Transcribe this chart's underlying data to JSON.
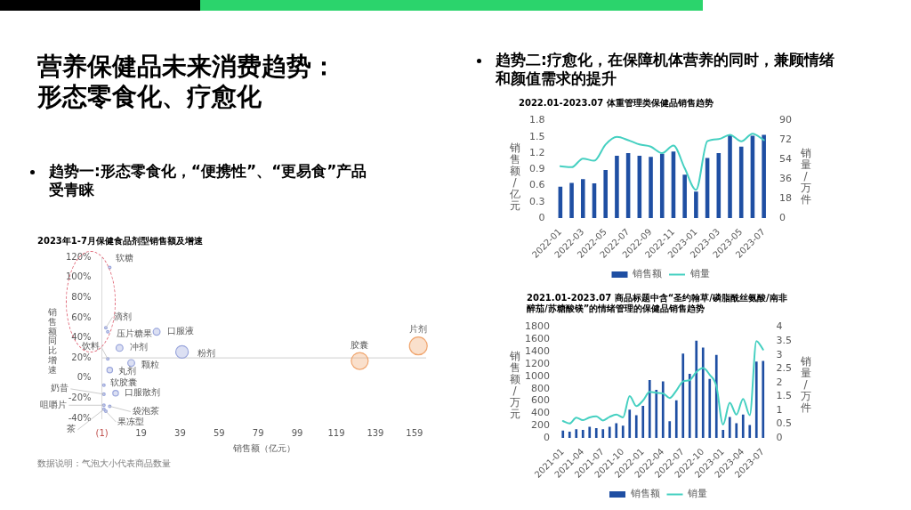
{
  "chart_data": [
    {
      "type": "other",
      "title": "营养保健品未来消费趋势：形态零食化、疗愈化",
      "annotations": [
        "趋势一:形态零食化，“便携性”、“更易食”产品受青睐"
      ]
    },
    {
      "type": "bubble",
      "title": "2023年1-7月保健食品剂型销售额及增速",
      "xlabel": "销售额（亿元）",
      "ylabel": "销售额同比增速",
      "x": [
        3,
        1,
        2,
        27,
        2,
        8,
        40,
        14,
        3,
        0,
        0,
        6,
        0,
        3,
        0,
        1,
        131,
        161
      ],
      "values": [
        110,
        50,
        46,
        46,
        19,
        30,
        26,
        15,
        8,
        -7,
        -16,
        -15,
        -27,
        -28,
        -31,
        -33,
        17,
        32
      ],
      "sizes": [
        0.02,
        0.02,
        0.02,
        0.15,
        0.02,
        0.15,
        0.5,
        0.15,
        0.1,
        0.02,
        0.02,
        0.1,
        0.02,
        0.02,
        0.02,
        0.02,
        0.9,
        1
      ],
      "colors": [
        "#9aa6dc",
        "#9aa6dc",
        "#9aa6dc",
        "#9aa6dc",
        "#9aa6dc",
        "#9aa6dc",
        "#9aa6dc",
        "#9aa6dc",
        "#9aa6dc",
        "#9aa6dc",
        "#9aa6dc",
        "#9aa6dc",
        "#9aa6dc",
        "#9aa6dc",
        "#9aa6dc",
        "#9aa6dc",
        "#f0a56e",
        "#f0a56e"
      ],
      "xlim": [
        -1,
        165
      ],
      "xticks": [
        {
          "value": -1,
          "label": "(1)"
        },
        19,
        39,
        59,
        79,
        99,
        119,
        139,
        159
      ],
      "ylim": [
        -40,
        120
      ],
      "yticks": [
        {
          "value": -40,
          "label": "-40%"
        },
        {
          "value": -20,
          "label": "-20%"
        },
        {
          "value": 0,
          "label": "0%"
        },
        {
          "value": 20,
          "label": "20%"
        },
        {
          "value": 40,
          "label": "40%"
        },
        {
          "value": 60,
          "label": "60%"
        },
        {
          "value": 80,
          "label": "80%"
        },
        {
          "value": 100,
          "label": "100%"
        },
        {
          "value": 120,
          "label": "120%"
        }
      ],
      "ref_lines": [
        {
          "axis": "y",
          "value": 20,
          "color": "#d9d9d9"
        }
      ],
      "annotations": [
        {
          "text": "软糖",
          "x": 3,
          "y": 110
        },
        {
          "text": "滴剂",
          "x": 1,
          "y": 50
        },
        {
          "text": "压片糖果",
          "x": 2,
          "y": 46
        },
        {
          "text": "口服液",
          "x": 27,
          "y": 46
        },
        {
          "text": "饮料",
          "x": 2,
          "y": 19
        },
        {
          "text": "冲剂",
          "x": 8,
          "y": 30
        },
        {
          "text": "粉剂",
          "x": 40,
          "y": 26
        },
        {
          "text": "颗粒",
          "x": 14,
          "y": 15
        },
        {
          "text": "丸剂",
          "x": 3,
          "y": 8
        },
        {
          "text": "软胶囊",
          "x": 0,
          "y": -7
        },
        {
          "text": "奶昔",
          "x": 0,
          "y": -16
        },
        {
          "text": "口服散剂",
          "x": 6,
          "y": -15
        },
        {
          "text": "咀嚼片",
          "x": 0,
          "y": -27
        },
        {
          "text": "袋泡茶",
          "x": 3,
          "y": -28
        },
        {
          "text": "茶",
          "x": 0,
          "y": -31
        },
        {
          "text": "果冻型",
          "x": 1,
          "y": -33
        },
        {
          "text": "胶囊",
          "x": 131,
          "y": 17
        },
        {
          "text": "片剂",
          "x": 161,
          "y": 32
        },
        "数据说明：气泡大小代表商品数量"
      ]
    },
    {
      "type": "other",
      "annotations": [
        "趋势二:疗愈化，在保障机体营养的同时，兼顾情绪和颜值需求的提升"
      ]
    },
    {
      "type": "bar",
      "title": "2022.01-2023.07 体重管理类保健品销售趋势",
      "ylabel": "销售额/亿元",
      "y2label": "销量/万件",
      "categories": [
        "2022-01",
        null,
        "2022-03",
        null,
        "2022-05",
        null,
        "2022-07",
        null,
        "2022-09",
        null,
        "2022-11",
        null,
        "2023-01",
        null,
        "2023-03",
        null,
        "2023-05",
        null,
        "2023-07"
      ],
      "series": [
        {
          "name": "销售额",
          "type": "bar",
          "color": "#1f4fa3",
          "values": [
            0.58,
            0.65,
            0.72,
            0.64,
            0.89,
            1.15,
            1.2,
            1.15,
            1.13,
            1.19,
            1.23,
            0.8,
            0.49,
            1.11,
            1.2,
            1.54,
            1.32,
            1.52,
            1.54
          ]
        },
        {
          "name": "销量",
          "type": "line",
          "axis": "y2",
          "color": "#45d0c1",
          "values": [
            48,
            47,
            55,
            53,
            68,
            75,
            72,
            68,
            66,
            60,
            67,
            46,
            26,
            71,
            73,
            77,
            71,
            78,
            72
          ]
        }
      ],
      "ylim": [
        0,
        1.8
      ],
      "yticks": [
        0,
        0.3,
        0.6,
        0.9,
        1.2,
        1.5,
        1.8
      ],
      "y2lim": [
        0,
        90
      ],
      "y2ticks": [
        0,
        18,
        36,
        54,
        72,
        90
      ],
      "legend": "bottom"
    },
    {
      "type": "bar",
      "title": "2021.01-2023.07 商品标题中含“圣约翰草/磷脂酰丝氨酸/南非醉茄/苏糖酸镁”的情绪管理的保健品销售趋势",
      "ylabel": "销售额/万元",
      "y2label": "销量/万件",
      "categories": [
        "2021-01",
        null,
        null,
        "2021-04",
        null,
        null,
        "2021-07",
        null,
        null,
        "2021-10",
        null,
        null,
        "2022-01",
        null,
        null,
        "2022-04",
        null,
        null,
        "2022-07",
        null,
        null,
        "2022-10",
        null,
        null,
        "2023-01",
        null,
        null,
        "2023-04",
        null,
        null,
        "2023-07"
      ],
      "series": [
        {
          "name": "销售额",
          "type": "bar",
          "color": "#1f4fa3",
          "values": [
            120,
            100,
            140,
            130,
            180,
            160,
            140,
            180,
            240,
            200,
            460,
            370,
            520,
            940,
            780,
            920,
            270,
            610,
            1370,
            1040,
            1580,
            1470,
            960,
            1350,
            130,
            340,
            240,
            380,
            210,
            1240,
            1250
          ]
        },
        {
          "name": "销量",
          "type": "line",
          "axis": "y2",
          "color": "#45d0c1",
          "values": [
            0.61,
            0.52,
            0.73,
            0.64,
            0.74,
            0.78,
            0.63,
            0.76,
            0.84,
            0.74,
            1.51,
            1.15,
            1.35,
            1.66,
            1.63,
            1.61,
            1.44,
            1.71,
            2.04,
            2.09,
            2.38,
            2.52,
            2.28,
            1.87,
            0.48,
            1.27,
            0.84,
            1.41,
            0.82,
            3.5,
            3.19
          ]
        }
      ],
      "ylim": [
        0,
        1800
      ],
      "yticks": [
        0,
        200,
        400,
        600,
        800,
        1000,
        1200,
        1400,
        1600,
        1800
      ],
      "y2lim": [
        0,
        4
      ],
      "y2ticks": [
        0,
        0.5,
        1,
        1.5,
        2,
        2.5,
        3,
        3.5,
        4
      ],
      "legend": "bottom"
    }
  ]
}
